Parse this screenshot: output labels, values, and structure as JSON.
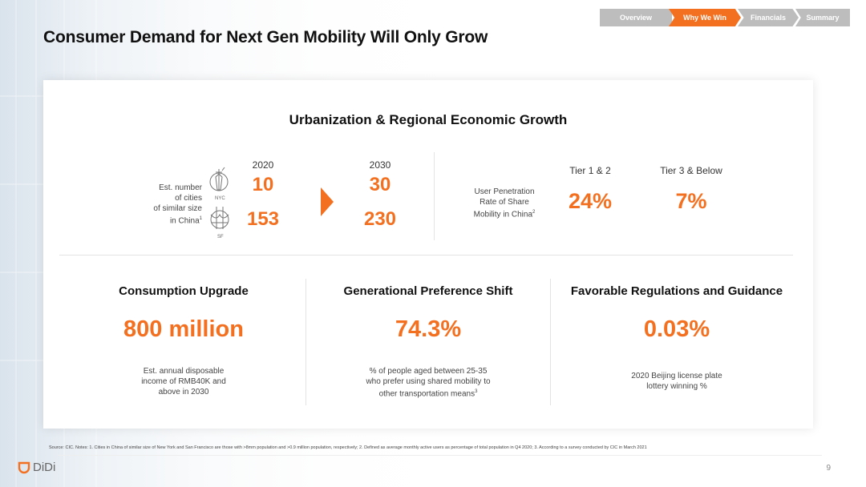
{
  "title": "Consumer Demand for Next Gen Mobility Will Only Grow",
  "nav": {
    "items": [
      {
        "label": "Overview",
        "active": false
      },
      {
        "label": "Why We Win",
        "active": true
      },
      {
        "label": "Financials",
        "active": false
      },
      {
        "label": "Summary",
        "active": false
      }
    ]
  },
  "urbanization": {
    "heading": "Urbanization & Regional Economic Growth",
    "label": [
      "Est. number",
      "of cities",
      "of similar size",
      "in China",
      "1"
    ],
    "year_a": "2020",
    "year_b": "2030",
    "nyc_label": "NYC",
    "sf_label": "SF",
    "nyc_2020": "10",
    "sf_2020": "153",
    "nyc_2030": "30",
    "sf_2030": "230",
    "penetration_label": [
      "User Penetration",
      "Rate of Share",
      "Mobility in China",
      "2"
    ],
    "tier1_label": "Tier 1 & 2",
    "tier3_label": "Tier 3 & Below",
    "tier1_value": "24%",
    "tier3_value": "7%"
  },
  "consumption": {
    "heading": "Consumption Upgrade",
    "value": "800 million",
    "desc": [
      "Est. annual disposable",
      "income of RMB40K and",
      "above in 2030"
    ]
  },
  "generational": {
    "heading": "Generational Preference Shift",
    "value": "74.3%",
    "desc": [
      "% of people aged between 25-35",
      "who prefer using shared mobility to",
      "other transportation means",
      "3"
    ]
  },
  "regulations": {
    "heading": "Favorable Regulations and Guidance",
    "value": "0.03%",
    "desc": [
      "2020 Beijing license plate",
      "lottery winning %"
    ]
  },
  "footnote": "Source: CIC. Notes: 1. Cities in China of similar size of New York and San Francisco are those with >8mm population and >0.9 million population, respectively; 2. Defined as average monthly active users as percentage of total population in Q4 2020; 3. According to a survey conducted by CIC in March 2021",
  "logo_text": "DiDi",
  "page_number": "9",
  "colors": {
    "accent": "#f37021",
    "nav_inactive": "#bdbdbd"
  }
}
